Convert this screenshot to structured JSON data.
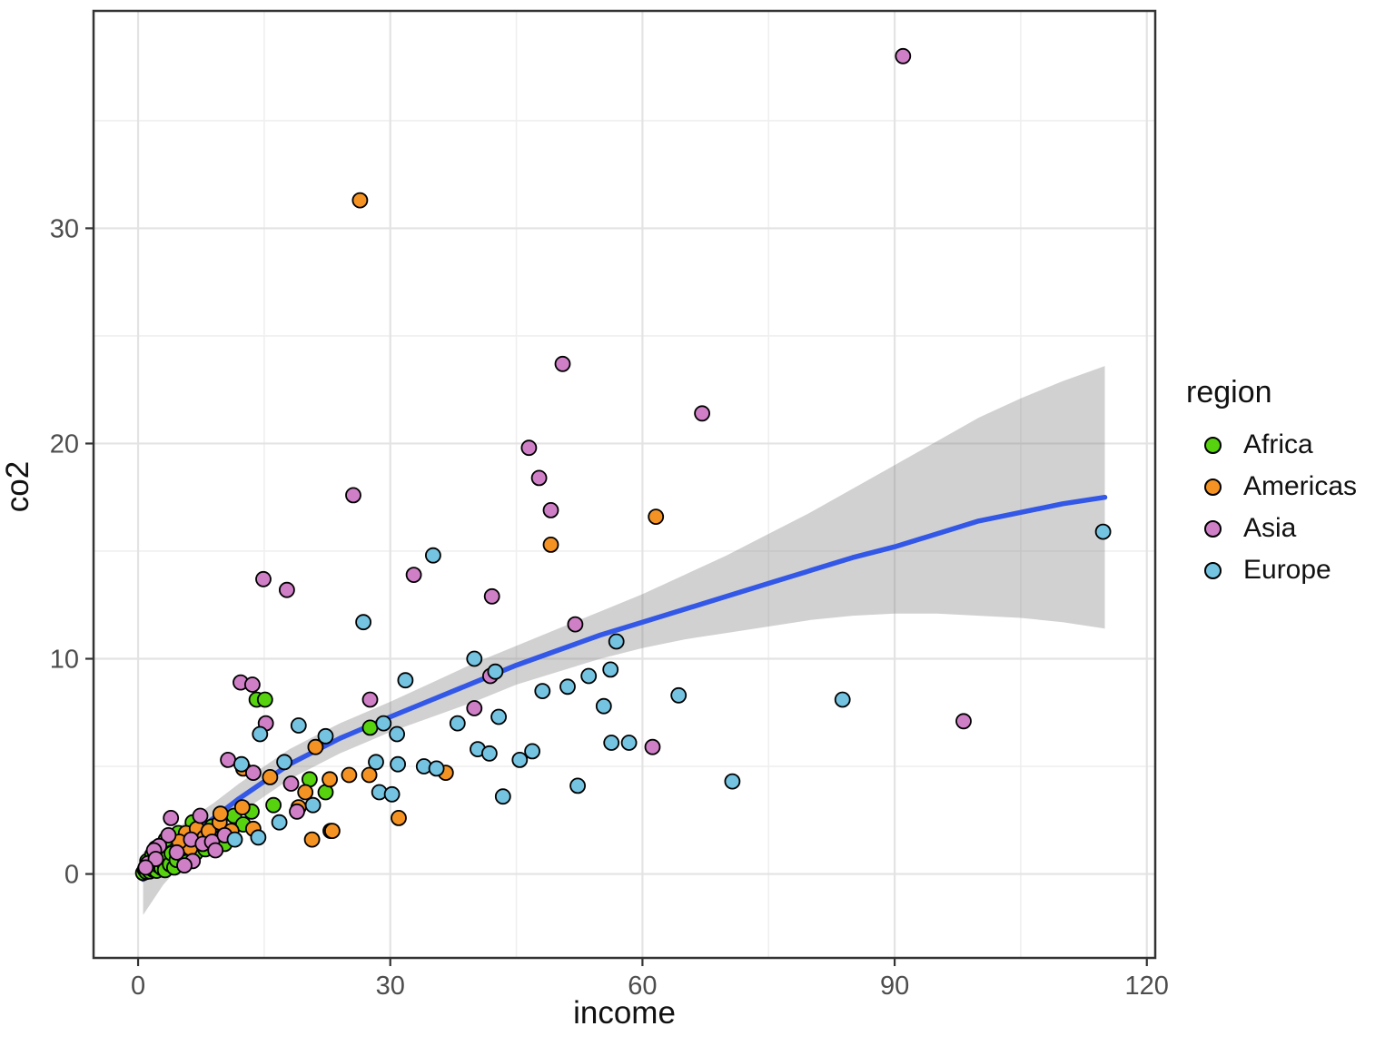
{
  "figure": {
    "background": "#FFFFFF",
    "panel_background": "#FFFFFF",
    "panel_border_color": "#333333",
    "grid_major_color": "#E3E3E3",
    "grid_minor_color": "#EFEFEF",
    "tick_color": "#333333",
    "tick_label_color": "#4D4D4D",
    "axis_title_color": "#111111"
  },
  "chart_data": {
    "type": "scatter",
    "title": "",
    "xlabel": "income",
    "ylabel": "co2",
    "x_ticks": [
      0,
      30,
      60,
      90,
      120
    ],
    "x_minor_ticks": [
      15,
      45,
      75,
      105
    ],
    "y_ticks": [
      0,
      10,
      20,
      30
    ],
    "y_minor_ticks": [
      5,
      15,
      25,
      35
    ],
    "xlim": [
      -5.3,
      121.0
    ],
    "ylim": [
      -3.9,
      40.1
    ],
    "grid": true,
    "point_radius": 8,
    "point_stroke": "#000000",
    "legend": {
      "title": "region",
      "position": "right"
    },
    "series": [
      {
        "name": "Africa",
        "color": "#56D30E",
        "points": [
          [
            0.6,
            0.05
          ],
          [
            0.8,
            0.2
          ],
          [
            1.0,
            0.1
          ],
          [
            1.2,
            0.3
          ],
          [
            1.4,
            0.12
          ],
          [
            1.6,
            0.35
          ],
          [
            1.8,
            0.2
          ],
          [
            2.0,
            0.5
          ],
          [
            2.2,
            0.15
          ],
          [
            2.4,
            0.4
          ],
          [
            2.6,
            0.65
          ],
          [
            2.8,
            0.28
          ],
          [
            3.0,
            0.55
          ],
          [
            3.2,
            0.18
          ],
          [
            3.5,
            0.75
          ],
          [
            3.8,
            0.45
          ],
          [
            4.0,
            0.95
          ],
          [
            4.3,
            0.3
          ],
          [
            4.6,
            0.65
          ],
          [
            5.0,
            1.15
          ],
          [
            5.4,
            0.85
          ],
          [
            5.8,
            0.55
          ],
          [
            6.2,
            1.35
          ],
          [
            6.8,
            0.95
          ],
          [
            7.4,
            1.8
          ],
          [
            8.0,
            1.15
          ],
          [
            8.8,
            2.2
          ],
          [
            9.6,
            1.5
          ],
          [
            10.3,
            1.4
          ],
          [
            11.4,
            2.7
          ],
          [
            12.5,
            2.3
          ],
          [
            13.5,
            2.9
          ],
          [
            16.1,
            3.2
          ],
          [
            20.4,
            4.4
          ],
          [
            22.3,
            3.8
          ],
          [
            14.1,
            8.1
          ],
          [
            15.1,
            8.1
          ],
          [
            27.6,
            6.8
          ],
          [
            1.1,
            0.6
          ],
          [
            1.7,
            0.9
          ],
          [
            2.1,
            1.2
          ],
          [
            3.3,
            1.6
          ],
          [
            4.8,
            1.9
          ],
          [
            6.5,
            2.4
          ]
        ]
      },
      {
        "name": "Americas",
        "color": "#F49323",
        "points": [
          [
            26.4,
            31.3
          ],
          [
            61.6,
            16.6
          ],
          [
            49.1,
            15.3
          ],
          [
            5.7,
            1.9
          ],
          [
            7.0,
            2.1
          ],
          [
            7.9,
            1.7
          ],
          [
            8.4,
            2.0
          ],
          [
            9.7,
            2.4
          ],
          [
            9.8,
            2.8
          ],
          [
            11.1,
            2.0
          ],
          [
            12.4,
            3.1
          ],
          [
            12.5,
            4.9
          ],
          [
            13.7,
            2.1
          ],
          [
            15.7,
            4.5
          ],
          [
            19.9,
            3.8
          ],
          [
            19.1,
            3.1
          ],
          [
            21.1,
            5.9
          ],
          [
            22.8,
            4.4
          ],
          [
            25.1,
            4.6
          ],
          [
            27.5,
            4.6
          ],
          [
            22.9,
            2.0
          ],
          [
            20.7,
            1.6
          ],
          [
            23.1,
            2.0
          ],
          [
            31.0,
            2.6
          ],
          [
            36.6,
            4.7
          ],
          [
            6.2,
            1.2
          ],
          [
            4.9,
            1.5
          ]
        ]
      },
      {
        "name": "Asia",
        "color": "#CF7FC6",
        "points": [
          [
            91.0,
            38.0
          ],
          [
            50.5,
            23.7
          ],
          [
            67.1,
            21.4
          ],
          [
            46.5,
            19.8
          ],
          [
            47.7,
            18.4
          ],
          [
            49.1,
            16.9
          ],
          [
            25.6,
            17.6
          ],
          [
            32.8,
            13.9
          ],
          [
            42.1,
            12.9
          ],
          [
            52.0,
            11.6
          ],
          [
            41.9,
            9.2
          ],
          [
            40.0,
            7.7
          ],
          [
            27.6,
            8.1
          ],
          [
            61.2,
            5.9
          ],
          [
            98.2,
            7.1
          ],
          [
            14.9,
            13.7
          ],
          [
            17.7,
            13.2
          ],
          [
            12.2,
            8.9
          ],
          [
            13.6,
            8.8
          ],
          [
            15.2,
            7.0
          ],
          [
            10.7,
            5.3
          ],
          [
            13.7,
            4.7
          ],
          [
            18.2,
            4.2
          ],
          [
            18.9,
            2.9
          ],
          [
            3.9,
            2.6
          ],
          [
            7.4,
            2.7
          ],
          [
            3.6,
            1.8
          ],
          [
            2.5,
            1.3
          ],
          [
            1.9,
            1.1
          ],
          [
            6.3,
            1.6
          ],
          [
            6.5,
            0.6
          ],
          [
            7.7,
            1.4
          ],
          [
            8.8,
            1.5
          ],
          [
            9.2,
            1.1
          ],
          [
            10.3,
            1.8
          ],
          [
            1.2,
            0.5
          ],
          [
            2.1,
            0.7
          ],
          [
            4.6,
            1.0
          ],
          [
            5.5,
            0.4
          ],
          [
            0.9,
            0.3
          ]
        ]
      },
      {
        "name": "Europe",
        "color": "#74C3E1",
        "points": [
          [
            114.8,
            15.9
          ],
          [
            83.8,
            8.1
          ],
          [
            70.7,
            4.3
          ],
          [
            64.3,
            8.3
          ],
          [
            56.9,
            10.8
          ],
          [
            56.2,
            9.5
          ],
          [
            53.6,
            9.2
          ],
          [
            51.1,
            8.7
          ],
          [
            55.4,
            7.8
          ],
          [
            56.3,
            6.1
          ],
          [
            58.4,
            6.1
          ],
          [
            52.3,
            4.1
          ],
          [
            35.1,
            14.8
          ],
          [
            26.8,
            11.7
          ],
          [
            40.0,
            10.0
          ],
          [
            42.5,
            9.4
          ],
          [
            31.8,
            9.0
          ],
          [
            48.1,
            8.5
          ],
          [
            38.0,
            7.0
          ],
          [
            29.2,
            7.0
          ],
          [
            30.8,
            6.5
          ],
          [
            22.3,
            6.4
          ],
          [
            19.1,
            6.9
          ],
          [
            14.5,
            6.5
          ],
          [
            12.3,
            5.1
          ],
          [
            17.4,
            5.2
          ],
          [
            28.3,
            5.2
          ],
          [
            30.9,
            5.1
          ],
          [
            34.0,
            5.0
          ],
          [
            35.5,
            4.9
          ],
          [
            40.4,
            5.8
          ],
          [
            41.8,
            5.6
          ],
          [
            42.9,
            7.3
          ],
          [
            46.9,
            5.7
          ],
          [
            45.4,
            5.3
          ],
          [
            43.4,
            3.6
          ],
          [
            28.7,
            3.8
          ],
          [
            30.2,
            3.7
          ],
          [
            20.8,
            3.2
          ],
          [
            14.3,
            1.7
          ],
          [
            16.8,
            2.4
          ],
          [
            11.5,
            1.6
          ]
        ]
      }
    ],
    "smooth": {
      "line_color": "#3357E6",
      "ribbon_color": "#7A7A7A",
      "ribbon_opacity": 0.35,
      "line": [
        [
          0.6,
          -0.25
        ],
        [
          3,
          0.7
        ],
        [
          6,
          1.7
        ],
        [
          9,
          2.6
        ],
        [
          12,
          3.5
        ],
        [
          15,
          4.3
        ],
        [
          18,
          5.1
        ],
        [
          21,
          5.7
        ],
        [
          24,
          6.3
        ],
        [
          27,
          6.8
        ],
        [
          30,
          7.3
        ],
        [
          35,
          8.1
        ],
        [
          40,
          8.9
        ],
        [
          45,
          9.7
        ],
        [
          50,
          10.4
        ],
        [
          55,
          11.1
        ],
        [
          60,
          11.7
        ],
        [
          65,
          12.3
        ],
        [
          70,
          12.9
        ],
        [
          75,
          13.5
        ],
        [
          80,
          14.1
        ],
        [
          85,
          14.7
        ],
        [
          90,
          15.2
        ],
        [
          95,
          15.8
        ],
        [
          100,
          16.4
        ],
        [
          105,
          16.8
        ],
        [
          110,
          17.2
        ],
        [
          115,
          17.5
        ]
      ],
      "ribbon_upper": [
        [
          0.6,
          1.0
        ],
        [
          3,
          1.7
        ],
        [
          6,
          2.5
        ],
        [
          9,
          3.3
        ],
        [
          12,
          4.2
        ],
        [
          15,
          5.0
        ],
        [
          18,
          5.8
        ],
        [
          21,
          6.4
        ],
        [
          24,
          7.0
        ],
        [
          27,
          7.5
        ],
        [
          30,
          8.0
        ],
        [
          35,
          8.9
        ],
        [
          40,
          9.8
        ],
        [
          45,
          10.6
        ],
        [
          50,
          11.4
        ],
        [
          55,
          12.2
        ],
        [
          60,
          13.0
        ],
        [
          65,
          13.9
        ],
        [
          70,
          14.8
        ],
        [
          75,
          15.8
        ],
        [
          80,
          16.8
        ],
        [
          85,
          17.9
        ],
        [
          90,
          19.0
        ],
        [
          95,
          20.1
        ],
        [
          100,
          21.2
        ],
        [
          105,
          22.1
        ],
        [
          110,
          22.9
        ],
        [
          115,
          23.6
        ]
      ],
      "ribbon_lower": [
        [
          0.6,
          -1.9
        ],
        [
          3,
          -0.5
        ],
        [
          6,
          0.8
        ],
        [
          9,
          1.9
        ],
        [
          12,
          2.8
        ],
        [
          15,
          3.6
        ],
        [
          18,
          4.4
        ],
        [
          21,
          5.0
        ],
        [
          24,
          5.6
        ],
        [
          27,
          6.1
        ],
        [
          30,
          6.6
        ],
        [
          35,
          7.3
        ],
        [
          40,
          8.0
        ],
        [
          45,
          8.8
        ],
        [
          50,
          9.4
        ],
        [
          55,
          10.0
        ],
        [
          60,
          10.5
        ],
        [
          65,
          10.9
        ],
        [
          70,
          11.2
        ],
        [
          75,
          11.5
        ],
        [
          80,
          11.8
        ],
        [
          85,
          12.0
        ],
        [
          90,
          12.1
        ],
        [
          95,
          12.1
        ],
        [
          100,
          12.0
        ],
        [
          105,
          11.9
        ],
        [
          110,
          11.7
        ],
        [
          115,
          11.4
        ]
      ]
    }
  }
}
